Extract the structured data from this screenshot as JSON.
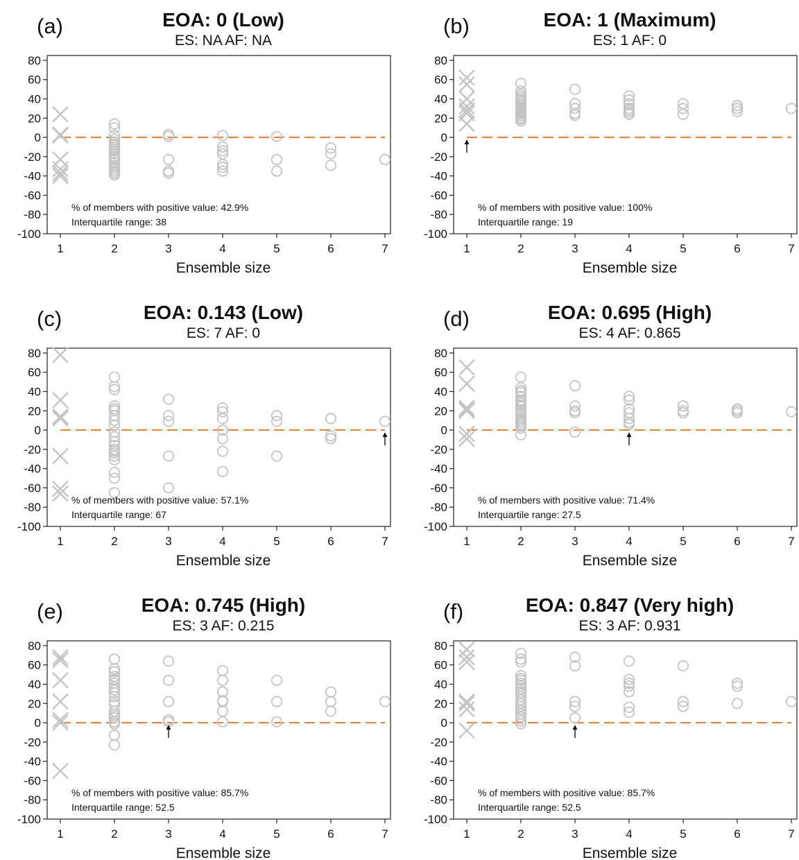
{
  "chart_data": [
    {
      "type": "scatter",
      "panel": "(a)",
      "title": "EOA: 0 (Low)",
      "subtitle": "ES: NA AF: NA",
      "xlabel": "Ensemble size",
      "ylabel": "",
      "xlim": [
        0.8,
        7.0
      ],
      "ylim": [
        -100,
        85
      ],
      "xticks": [
        1,
        2,
        3,
        4,
        5,
        6,
        7
      ],
      "yticks": [
        80,
        60,
        40,
        20,
        0,
        -20,
        -40,
        -60,
        -80,
        -100
      ],
      "reference_line_y": 0,
      "annotations": [
        "% of members with positive value: 42.9%",
        "Interquartile range: 38"
      ],
      "arrow_x": null,
      "series": [
        {
          "marker": "cross",
          "x": [
            1,
            1,
            1,
            1,
            1,
            1,
            1
          ],
          "y": [
            24,
            3,
            2,
            -23,
            -33,
            -37,
            -40
          ]
        },
        {
          "marker": "circle",
          "x": [
            2,
            2,
            2,
            2,
            2,
            2,
            2,
            2,
            2,
            2,
            2,
            2,
            2,
            2,
            2,
            2,
            2,
            2,
            2,
            2,
            2
          ],
          "y": [
            14,
            10,
            2,
            -2,
            -5,
            -7,
            -10,
            -12,
            -14,
            -17,
            -20,
            -23,
            -26,
            -29,
            -31,
            -33,
            -35,
            -37,
            -39,
            -22,
            -8
          ]
        },
        {
          "marker": "circle",
          "x": [
            3,
            3,
            3,
            3,
            3
          ],
          "y": [
            3,
            1,
            -23,
            -35,
            -37
          ]
        },
        {
          "marker": "circle",
          "x": [
            4,
            4,
            4,
            4,
            4,
            4,
            4
          ],
          "y": [
            2,
            -10,
            -14,
            -17,
            -28,
            -31,
            -35
          ]
        },
        {
          "marker": "circle",
          "x": [
            5,
            5,
            5
          ],
          "y": [
            1,
            -23,
            -35
          ]
        },
        {
          "marker": "circle",
          "x": [
            6,
            6,
            6
          ],
          "y": [
            -11,
            -17,
            -29
          ]
        },
        {
          "marker": "circle",
          "x": [
            7
          ],
          "y": [
            -23
          ]
        }
      ]
    },
    {
      "type": "scatter",
      "panel": "(b)",
      "title": "EOA: 1 (Maximum)",
      "subtitle": "ES: 1 AF: 0",
      "xlabel": "Ensemble size",
      "ylabel": "",
      "xlim": [
        0.8,
        7.0
      ],
      "ylim": [
        -100,
        85
      ],
      "xticks": [
        1,
        2,
        3,
        4,
        5,
        6,
        7
      ],
      "yticks": [
        80,
        60,
        40,
        20,
        0,
        -20,
        -40,
        -60,
        -80,
        -100
      ],
      "reference_line_y": 0,
      "annotations": [
        "% of members with positive value: 100%",
        "Interquartile range: 19"
      ],
      "arrow_x": 1,
      "series": [
        {
          "marker": "cross",
          "x": [
            1,
            1,
            1,
            1,
            1,
            1,
            1
          ],
          "y": [
            62,
            55,
            40,
            32,
            28,
            25,
            14
          ]
        },
        {
          "marker": "circle",
          "x": [
            2,
            2,
            2,
            2,
            2,
            2,
            2,
            2,
            2,
            2,
            2,
            2,
            2,
            2,
            2,
            2,
            2,
            2,
            2,
            2,
            2
          ],
          "y": [
            56,
            48,
            45,
            43,
            41,
            39,
            37,
            35,
            33,
            31,
            30,
            29,
            28,
            27,
            26,
            25,
            24,
            22,
            20,
            19,
            17
          ]
        },
        {
          "marker": "circle",
          "x": [
            3,
            3,
            3,
            3,
            3
          ],
          "y": [
            50,
            35,
            30,
            25,
            23
          ]
        },
        {
          "marker": "circle",
          "x": [
            4,
            4,
            4,
            4,
            4,
            4,
            4
          ],
          "y": [
            43,
            39,
            35,
            30,
            28,
            26,
            24
          ]
        },
        {
          "marker": "circle",
          "x": [
            5,
            5,
            5
          ],
          "y": [
            35,
            30,
            24
          ]
        },
        {
          "marker": "circle",
          "x": [
            6,
            6,
            6
          ],
          "y": [
            33,
            30,
            27
          ]
        },
        {
          "marker": "circle",
          "x": [
            7
          ],
          "y": [
            30
          ]
        }
      ]
    },
    {
      "type": "scatter",
      "panel": "(c)",
      "title": "EOA: 0.143 (Low)",
      "subtitle": "ES: 7 AF: 0",
      "xlabel": "Ensemble size",
      "ylabel": "",
      "xlim": [
        0.8,
        7.0
      ],
      "ylim": [
        -100,
        85
      ],
      "xticks": [
        1,
        2,
        3,
        4,
        5,
        6,
        7
      ],
      "yticks": [
        80,
        60,
        40,
        20,
        0,
        -20,
        -40,
        -60,
        -80,
        -100
      ],
      "reference_line_y": 0,
      "annotations": [
        "% of members with positive value: 57.1%",
        "Interquartile range: 67"
      ],
      "arrow_x": 7,
      "series": [
        {
          "marker": "cross",
          "x": [
            1,
            1,
            1,
            1,
            1,
            1,
            1
          ],
          "y": [
            78,
            31,
            14,
            12,
            -27,
            -61,
            -66
          ]
        },
        {
          "marker": "circle",
          "x": [
            2,
            2,
            2,
            2,
            2,
            2,
            2,
            2,
            2,
            2,
            2,
            2,
            2,
            2,
            2,
            2,
            2,
            2,
            2,
            2,
            2
          ],
          "y": [
            55,
            45,
            42,
            25,
            22,
            20,
            10,
            5,
            -2,
            -7,
            -12,
            -16,
            -20,
            -22,
            -24,
            -27,
            -31,
            -44,
            -50,
            -65,
            15
          ]
        },
        {
          "marker": "circle",
          "x": [
            3,
            3,
            3,
            3,
            3
          ],
          "y": [
            32,
            15,
            9,
            -27,
            -60
          ]
        },
        {
          "marker": "circle",
          "x": [
            4,
            4,
            4,
            4,
            4,
            4,
            4
          ],
          "y": [
            23,
            19,
            12,
            0,
            -9,
            -22,
            -43
          ]
        },
        {
          "marker": "circle",
          "x": [
            5,
            5,
            5
          ],
          "y": [
            15,
            9,
            -27
          ]
        },
        {
          "marker": "circle",
          "x": [
            6,
            6,
            6
          ],
          "y": [
            12,
            -6,
            -9
          ]
        },
        {
          "marker": "circle",
          "x": [
            7
          ],
          "y": [
            9
          ]
        }
      ]
    },
    {
      "type": "scatter",
      "panel": "(d)",
      "title": "EOA: 0.695 (High)",
      "subtitle": "ES: 4 AF: 0.865",
      "xlabel": "Ensemble size",
      "ylabel": "",
      "xlim": [
        0.8,
        7.0
      ],
      "ylim": [
        -100,
        85
      ],
      "xticks": [
        1,
        2,
        3,
        4,
        5,
        6,
        7
      ],
      "yticks": [
        80,
        60,
        40,
        20,
        0,
        -20,
        -40,
        -60,
        -80,
        -100
      ],
      "reference_line_y": 0,
      "annotations": [
        "% of members with positive value: 71.4%",
        "Interquartile range: 27.5"
      ],
      "arrow_x": 4,
      "series": [
        {
          "marker": "cross",
          "x": [
            1,
            1,
            1,
            1,
            1,
            1,
            1
          ],
          "y": [
            65,
            48,
            23,
            21,
            20,
            -4,
            -9
          ]
        },
        {
          "marker": "circle",
          "x": [
            2,
            2,
            2,
            2,
            2,
            2,
            2,
            2,
            2,
            2,
            2,
            2,
            2,
            2,
            2,
            2,
            2,
            2,
            2,
            2,
            2
          ],
          "y": [
            55,
            44,
            41,
            39,
            35,
            31,
            28,
            26,
            24,
            21,
            19,
            17,
            14,
            12,
            10,
            8,
            6,
            4,
            2,
            -5,
            30
          ]
        },
        {
          "marker": "circle",
          "x": [
            3,
            3,
            3,
            3,
            3
          ],
          "y": [
            46,
            25,
            20,
            18,
            -2
          ]
        },
        {
          "marker": "circle",
          "x": [
            4,
            4,
            4,
            4,
            4,
            4,
            4
          ],
          "y": [
            35,
            31,
            22,
            18,
            12,
            8,
            6
          ]
        },
        {
          "marker": "circle",
          "x": [
            5,
            5,
            5
          ],
          "y": [
            25,
            20,
            18
          ]
        },
        {
          "marker": "circle",
          "x": [
            6,
            6,
            6
          ],
          "y": [
            22,
            20,
            18
          ]
        },
        {
          "marker": "circle",
          "x": [
            7
          ],
          "y": [
            19
          ]
        }
      ]
    },
    {
      "type": "scatter",
      "panel": "(e)",
      "title": "EOA: 0.745 (High)",
      "subtitle": "ES: 3 AF: 0.215",
      "xlabel": "Ensemble size",
      "ylabel": "",
      "xlim": [
        0.8,
        7.0
      ],
      "ylim": [
        -100,
        85
      ],
      "xticks": [
        1,
        2,
        3,
        4,
        5,
        6,
        7
      ],
      "yticks": [
        80,
        60,
        40,
        20,
        0,
        -20,
        -40,
        -60,
        -80,
        -100
      ],
      "reference_line_y": 0,
      "annotations": [
        "% of members with positive value: 85.7%",
        "Interquartile range: 52.5"
      ],
      "arrow_x": 3,
      "series": [
        {
          "marker": "cross",
          "x": [
            1,
            1,
            1,
            1,
            1,
            1,
            1
          ],
          "y": [
            68,
            65,
            44,
            22,
            3,
            0,
            -50
          ]
        },
        {
          "marker": "circle",
          "x": [
            2,
            2,
            2,
            2,
            2,
            2,
            2,
            2,
            2,
            2,
            2,
            2,
            2,
            2,
            2,
            2,
            2,
            2,
            2,
            2,
            2
          ],
          "y": [
            66,
            56,
            53,
            48,
            44,
            41,
            37,
            34,
            31,
            27,
            22,
            19,
            12,
            9,
            7,
            5,
            1,
            -1,
            -13,
            -23,
            45
          ]
        },
        {
          "marker": "circle",
          "x": [
            3,
            3,
            3,
            3,
            3
          ],
          "y": [
            64,
            44,
            22,
            3,
            1
          ]
        },
        {
          "marker": "circle",
          "x": [
            4,
            4,
            4,
            4,
            4,
            4,
            4
          ],
          "y": [
            54,
            44,
            32,
            23,
            22,
            12,
            1
          ]
        },
        {
          "marker": "circle",
          "x": [
            5,
            5,
            5
          ],
          "y": [
            44,
            22,
            1
          ]
        },
        {
          "marker": "circle",
          "x": [
            6,
            6,
            6
          ],
          "y": [
            32,
            22,
            12
          ]
        },
        {
          "marker": "circle",
          "x": [
            7
          ],
          "y": [
            22
          ]
        }
      ]
    },
    {
      "type": "scatter",
      "panel": "(f)",
      "title": "EOA: 0.847 (Very high)",
      "subtitle": "ES: 3 AF: 0.931",
      "xlabel": "Ensemble size",
      "ylabel": "",
      "xlim": [
        0.8,
        7.0
      ],
      "ylim": [
        -100,
        85
      ],
      "xticks": [
        1,
        2,
        3,
        4,
        5,
        6,
        7
      ],
      "yticks": [
        80,
        60,
        40,
        20,
        0,
        -20,
        -40,
        -60,
        -80,
        -100
      ],
      "reference_line_y": 0,
      "annotations": [
        "% of members with positive value: 85.7%",
        "Interquartile range: 52.5"
      ],
      "arrow_x": 3,
      "series": [
        {
          "marker": "cross",
          "x": [
            1,
            1,
            1,
            1,
            1,
            1,
            1
          ],
          "y": [
            76,
            68,
            63,
            22,
            20,
            14,
            -8
          ]
        },
        {
          "marker": "circle",
          "x": [
            2,
            2,
            2,
            2,
            2,
            2,
            2,
            2,
            2,
            2,
            2,
            2,
            2,
            2,
            2,
            2,
            2,
            2,
            2,
            2,
            2
          ],
          "y": [
            72,
            66,
            63,
            49,
            46,
            44,
            41,
            38,
            35,
            32,
            30,
            27,
            24,
            20,
            17,
            12,
            9,
            6,
            2,
            -1,
            14
          ]
        },
        {
          "marker": "circle",
          "x": [
            3,
            3,
            3,
            3,
            3
          ],
          "y": [
            68,
            59,
            22,
            17,
            5
          ]
        },
        {
          "marker": "circle",
          "x": [
            4,
            4,
            4,
            4,
            4,
            4,
            4
          ],
          "y": [
            64,
            45,
            41,
            38,
            32,
            16,
            11
          ]
        },
        {
          "marker": "circle",
          "x": [
            5,
            5,
            5
          ],
          "y": [
            59,
            22,
            17
          ]
        },
        {
          "marker": "circle",
          "x": [
            6,
            6,
            6
          ],
          "y": [
            41,
            38,
            20
          ]
        },
        {
          "marker": "circle",
          "x": [
            7
          ],
          "y": [
            22
          ]
        }
      ]
    }
  ]
}
